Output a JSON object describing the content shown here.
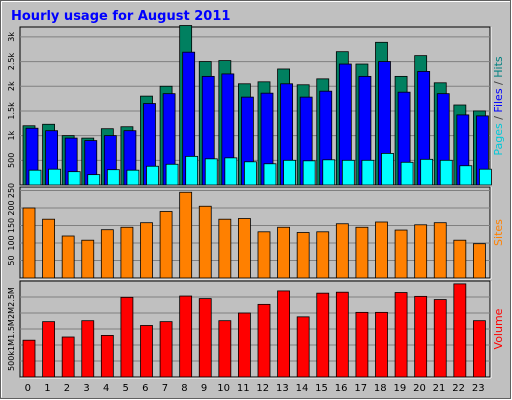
{
  "chart_data": {
    "type": "bar",
    "title": "Hourly usage for August 2011",
    "categories": [
      "0",
      "1",
      "2",
      "3",
      "4",
      "5",
      "6",
      "7",
      "8",
      "9",
      "10",
      "11",
      "12",
      "13",
      "14",
      "15",
      "16",
      "17",
      "18",
      "19",
      "20",
      "21",
      "22",
      "23"
    ],
    "panels": [
      {
        "name": "top",
        "axis_title_parts": [
          {
            "text": "Pages",
            "color": "#00c8d8"
          },
          {
            "text": " / ",
            "color": "#404040"
          },
          {
            "text": "Files",
            "color": "#0000ff"
          },
          {
            "text": " / ",
            "color": "#404040"
          },
          {
            "text": "Hits",
            "color": "#008080"
          }
        ],
        "ylim": [
          0,
          3200
        ],
        "yticks": [
          500,
          1000,
          1500,
          2000,
          2500,
          3000
        ],
        "ytick_labels": [
          "500",
          "1k",
          "1.5k",
          "2k",
          "2.5k",
          "3k"
        ],
        "series": [
          {
            "name": "Hits",
            "color": "#008060",
            "values": [
              1200,
              1230,
              1000,
              950,
              1140,
              1180,
              1800,
              2000,
              3230,
              2500,
              2520,
              2050,
              2090,
              2350,
              2030,
              2150,
              2700,
              2450,
              2890,
              2200,
              2620,
              2070,
              1620,
              1500
            ]
          },
          {
            "name": "Files",
            "color": "#0000ff",
            "values": [
              1150,
              1100,
              950,
              900,
              1000,
              1100,
              1650,
              1850,
              2690,
              2200,
              2250,
              1780,
              1860,
              2050,
              1780,
              1900,
              2450,
              2200,
              2500,
              1880,
              2300,
              1850,
              1420,
              1400
            ]
          },
          {
            "name": "Pages",
            "color": "#00ffff",
            "values": [
              300,
              320,
              270,
              210,
              310,
              300,
              380,
              420,
              580,
              530,
              550,
              470,
              430,
              500,
              490,
              510,
              500,
              500,
              640,
              460,
              520,
              500,
              390,
              320
            ]
          }
        ]
      },
      {
        "name": "middle",
        "axis_title_parts": [
          {
            "text": "Sites",
            "color": "#ff8000"
          }
        ],
        "ylim": [
          0,
          260
        ],
        "yticks": [
          50,
          100,
          150,
          200,
          250
        ],
        "ytick_labels": [
          "50",
          "100",
          "150",
          "200",
          "250"
        ],
        "series": [
          {
            "name": "Sites",
            "color": "#ff8000",
            "values": [
              200,
              168,
              120,
              108,
              138,
              145,
              158,
              190,
              245,
              205,
              168,
              170,
              132,
              145,
              130,
              132,
              155,
              145,
              160,
              137,
              152,
              158,
              108,
              98
            ]
          }
        ]
      },
      {
        "name": "bottom",
        "axis_title_parts": [
          {
            "text": "Volume",
            "color": "#ff0000"
          }
        ],
        "ylim": [
          0,
          3000000
        ],
        "yticks": [
          500000,
          1000000,
          1500000,
          2000000,
          2500000
        ],
        "ytick_labels": [
          "500k",
          "1M",
          "1.5M",
          "2M",
          "2.5M"
        ],
        "series": [
          {
            "name": "Volume",
            "color": "#ff0000",
            "values": [
              1150000,
              1730000,
              1250000,
              1760000,
              1300000,
              2490000,
              1610000,
              1730000,
              2530000,
              2450000,
              1760000,
              2000000,
              2270000,
              2690000,
              1880000,
              2620000,
              2650000,
              2020000,
              2020000,
              2640000,
              2520000,
              2420000,
              2910000,
              1760000
            ]
          }
        ]
      }
    ]
  }
}
